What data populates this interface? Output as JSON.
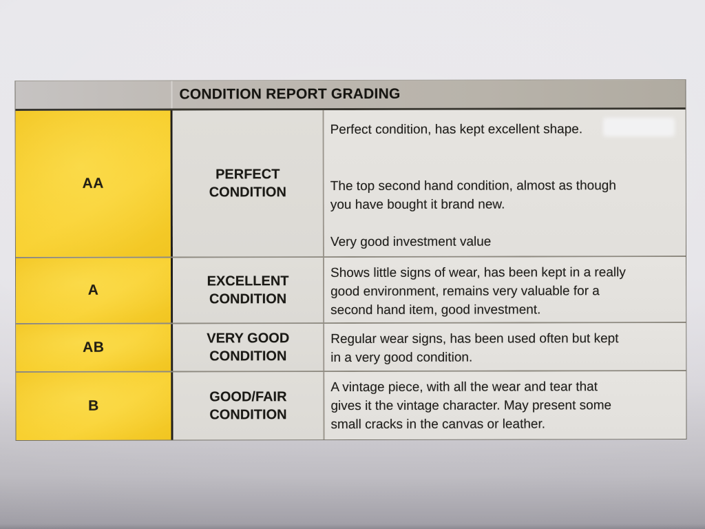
{
  "document": {
    "title": "CONDITION REPORT GRADING",
    "rows": [
      {
        "grade": "AA",
        "condition": "PERFECT\nCONDITION",
        "paragraphs": [
          "Perfect condition, has kept excellent shape.",
          "The top second hand condition, almost as though\nyou have bought it brand new.",
          "Very good investment value"
        ]
      },
      {
        "grade": "A",
        "condition": "EXCELLENT\nCONDITION",
        "paragraphs": [
          "Shows little signs of wear, has been kept in a really\ngood environment, remains very valuable for a\nsecond hand item, good investment."
        ]
      },
      {
        "grade": "AB",
        "condition": "VERY GOOD\nCONDITION",
        "paragraphs": [
          "Regular wear signs, has been used often but kept\nin a very good condition."
        ]
      },
      {
        "grade": "B",
        "condition": "GOOD/FAIR\nCONDITION",
        "paragraphs": [
          "A vintage piece, with all the wear and tear that\ngives it the vintage character. May present some\nsmall cracks in the canvas or leather."
        ]
      }
    ],
    "colors": {
      "grade_column_yellow": "#f7ce2b",
      "header_gray": "#bab5ac",
      "cell_gray": "#e3e1dd",
      "divider_dark": "#211f1b",
      "text": "#1d1c1a",
      "paper": "#e7e6ea"
    }
  }
}
